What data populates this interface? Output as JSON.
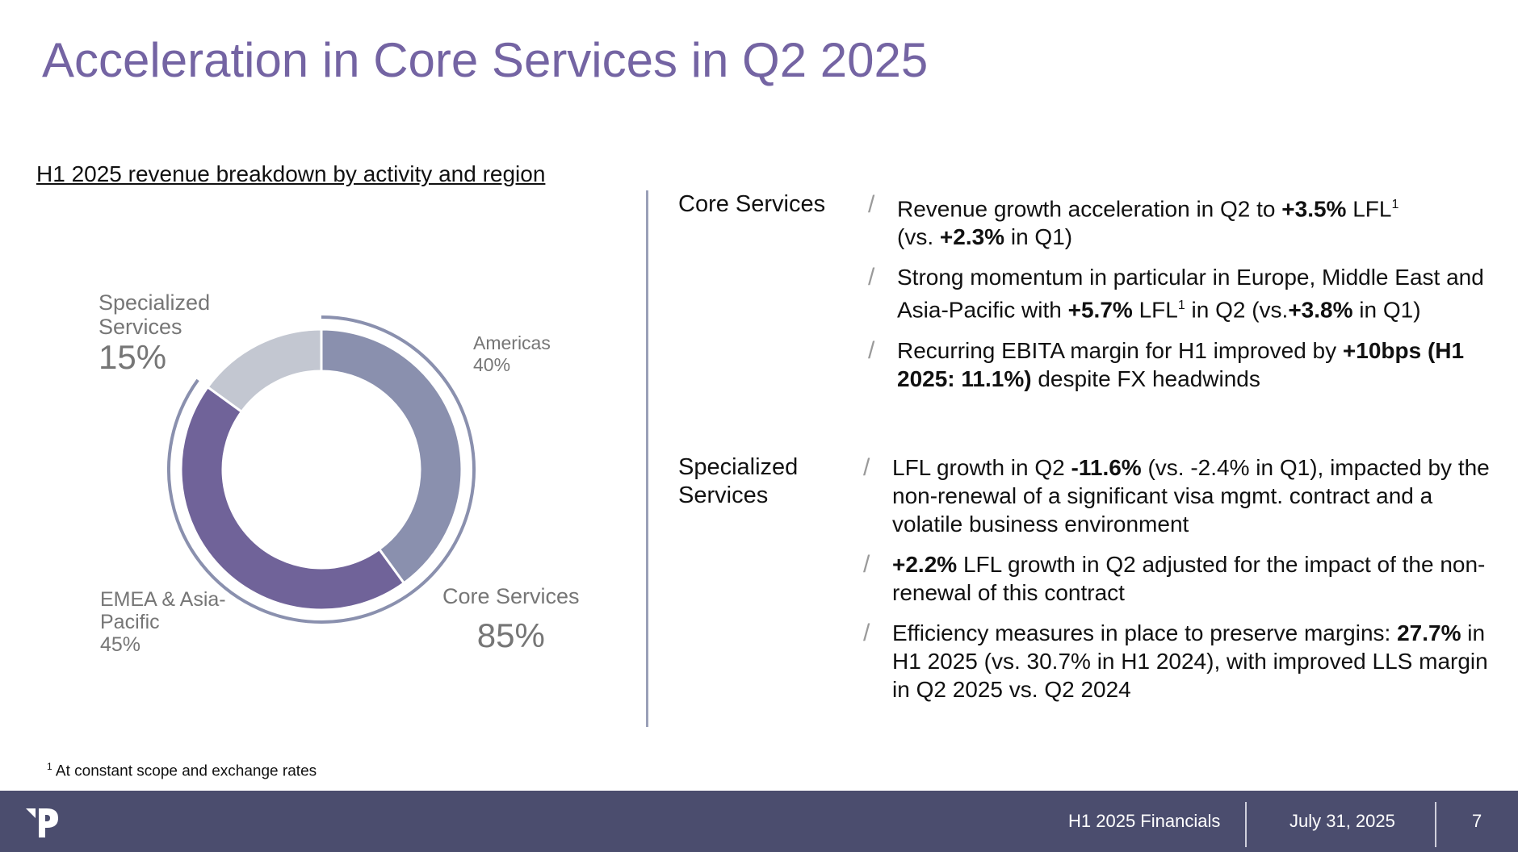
{
  "title": "Acceleration in Core Services in Q2 2025",
  "chart_data": {
    "type": "pie",
    "title": "H1 2025 revenue breakdown by activity and region",
    "slices": [
      {
        "name": "Americas",
        "value": 40,
        "label": "40%",
        "color": "#8a90ae"
      },
      {
        "name": "EMEA & Asia-Pacific",
        "value": 45,
        "label": "45%",
        "color": "#706399"
      },
      {
        "name": "Specialized Services",
        "value": 15,
        "label": "15%",
        "color": "#c3c7d1"
      }
    ],
    "group": {
      "name": "Core Services",
      "value": 85,
      "label": "85%",
      "color": "#8a90ae"
    }
  },
  "labels": {
    "specialized_name": "Specialized Services",
    "specialized_value": "15%",
    "americas_name": "Americas",
    "americas_value": "40%",
    "emea_name": "EMEA & Asia-Pacific",
    "emea_value": "45%",
    "core_name": "Core Services",
    "core_value": "85%"
  },
  "core_services": {
    "heading": "Core Services",
    "b1": {
      "t1": "Revenue growth acceleration in Q2 to ",
      "b1": "+3.5%",
      "t2": " LFL",
      "sup": "1",
      "t3": " (vs. ",
      "b2": "+2.3%",
      "t4": " in Q1)"
    },
    "b2": {
      "t1": "Strong momentum in particular in Europe, Middle East and Asia-Pacific with ",
      "b1": "+5.7%",
      "t2": " LFL",
      "sup": "1",
      "t3": " in Q2 (vs.",
      "b2": "+3.8%",
      "t4": " in Q1)"
    },
    "b3": {
      "t1": "Recurring EBITA margin for H1 improved by ",
      "b1": "+10bps (H1 2025: 11.1%)",
      "t2": " despite FX headwinds"
    }
  },
  "specialized_services": {
    "heading": "Specialized Services",
    "b1": {
      "t1": "LFL growth in Q2  ",
      "b1": "-11.6%",
      "t2": " (vs. -2.4% in Q1), impacted by the non-renewal of a significant visa mgmt. contract and a volatile business environment"
    },
    "b2": {
      "b1": "+2.2%",
      "t1": " LFL growth in Q2 adjusted for the impact of the non-renewal of this contract"
    },
    "b3": {
      "t1": "Efficiency measures in place to preserve margins: ",
      "b1": "27.7%",
      "t2": " in H1 2025 (vs. 30.7% in H1 2024), with improved LLS margin in Q2 2025 vs. Q2 2024"
    }
  },
  "footnote": {
    "sup": "1",
    "text": " At constant scope and exchange rates"
  },
  "footer": {
    "report": "H1 2025 Financials",
    "date": "July 31, 2025",
    "page": "7"
  },
  "colors": {
    "title": "#7464a3",
    "footer_bg": "#4b4d6e",
    "americas": "#8a90ae",
    "emea": "#706399",
    "specialized": "#c3c7d1"
  }
}
